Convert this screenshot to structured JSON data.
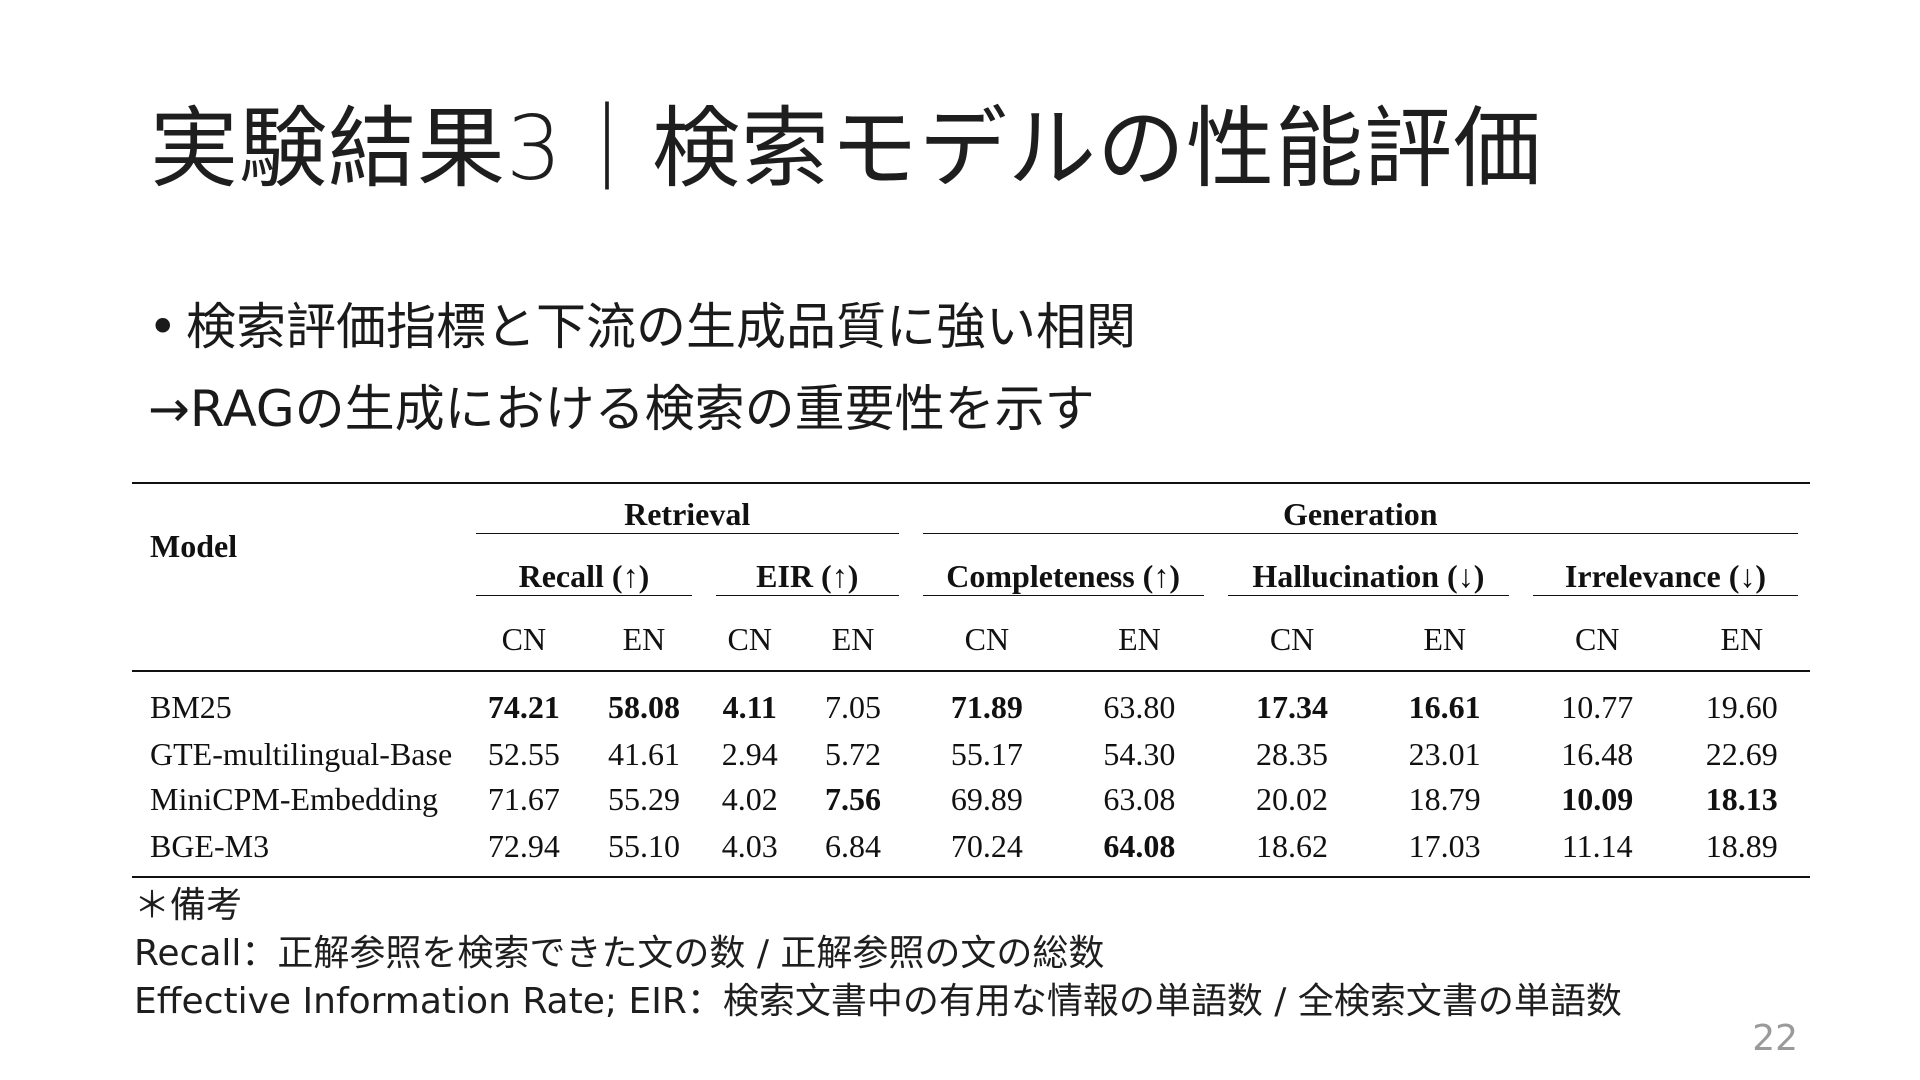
{
  "slide": {
    "title": "実験結果3｜検索モデルの性能評価",
    "bullets": [
      "検索評価指標と下流の生成品質に強い相関",
      "→RAGの生成における検索の重要性を示す"
    ],
    "bullet_marker": "•",
    "page_number": "22"
  },
  "table": {
    "model_header": "Model",
    "groups": [
      "Retrieval",
      "Generation"
    ],
    "metrics": [
      "Recall (↑)",
      "EIR (↑)",
      "Completeness (↑)",
      "Hallucination (↓)",
      "Irrelevance (↓)"
    ],
    "lang_labels": [
      "CN",
      "EN"
    ],
    "rows": [
      {
        "model": "BM25",
        "values": [
          "74.21",
          "58.08",
          "4.11",
          "7.05",
          "71.89",
          "63.80",
          "17.34",
          "16.61",
          "10.77",
          "19.60"
        ],
        "bold": [
          true,
          true,
          true,
          false,
          true,
          false,
          true,
          true,
          false,
          false
        ]
      },
      {
        "model": "GTE-multilingual-Base",
        "values": [
          "52.55",
          "41.61",
          "2.94",
          "5.72",
          "55.17",
          "54.30",
          "28.35",
          "23.01",
          "16.48",
          "22.69"
        ],
        "bold": [
          false,
          false,
          false,
          false,
          false,
          false,
          false,
          false,
          false,
          false
        ]
      },
      {
        "model": "MiniCPM-Embedding",
        "values": [
          "71.67",
          "55.29",
          "4.02",
          "7.56",
          "69.89",
          "63.08",
          "20.02",
          "18.79",
          "10.09",
          "18.13"
        ],
        "bold": [
          false,
          false,
          false,
          true,
          false,
          false,
          false,
          false,
          true,
          true
        ]
      },
      {
        "model": "BGE-M3",
        "values": [
          "72.94",
          "55.10",
          "4.03",
          "6.84",
          "70.24",
          "64.08",
          "18.62",
          "17.03",
          "11.14",
          "18.89"
        ],
        "bold": [
          false,
          false,
          false,
          false,
          false,
          true,
          false,
          false,
          false,
          false
        ]
      }
    ]
  },
  "notes": {
    "heading": "＊備考",
    "lines": [
      "Recall：正解参照を検索できた文の数 / 正解参照の文の総数",
      "Effective Information Rate; EIR：検索文書中の有用な情報の単語数 / 全検索文書の単語数"
    ]
  }
}
